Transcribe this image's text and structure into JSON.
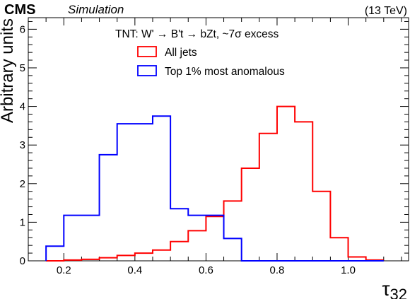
{
  "header": {
    "experiment": "CMS",
    "subtitle": "Simulation",
    "energy": "(13 TeV)"
  },
  "chart_data": {
    "type": "step-histogram",
    "title": "",
    "xlabel": "τ32",
    "ylabel": "Arbitrary units",
    "xlim": [
      0.1,
      1.17
    ],
    "ylim": [
      0,
      6.3
    ],
    "x_ticks": [
      "0.2",
      "0.4",
      "0.6",
      "0.8",
      "1.0"
    ],
    "y_ticks": [
      "0",
      "1",
      "2",
      "3",
      "4",
      "5",
      "6"
    ],
    "grid": false,
    "legend": {
      "placement": "top-center",
      "title": "TNT: W' → B't → bZt, ~7σ excess"
    },
    "bin_edges": [
      0.15,
      0.2,
      0.25,
      0.3,
      0.35,
      0.4,
      0.45,
      0.5,
      0.55,
      0.6,
      0.65,
      0.7,
      0.75,
      0.8,
      0.85,
      0.9,
      0.95,
      1.0,
      1.05,
      1.1
    ],
    "series": [
      {
        "name": "All jets",
        "color": "#ff0000",
        "values": [
          0.0,
          0.02,
          0.04,
          0.08,
          0.14,
          0.2,
          0.28,
          0.5,
          0.78,
          1.15,
          1.55,
          2.4,
          3.3,
          4.0,
          3.6,
          1.8,
          0.6,
          0.1,
          0.02
        ]
      },
      {
        "name": "Top 1% most anomalous",
        "color": "#0000ff",
        "values": [
          0.38,
          1.18,
          1.18,
          2.75,
          3.55,
          3.55,
          3.75,
          1.35,
          1.18,
          1.18,
          0.58,
          0.0,
          0.0,
          0.0,
          0.0,
          0.0,
          0.0,
          0.0,
          0.0
        ]
      }
    ]
  }
}
